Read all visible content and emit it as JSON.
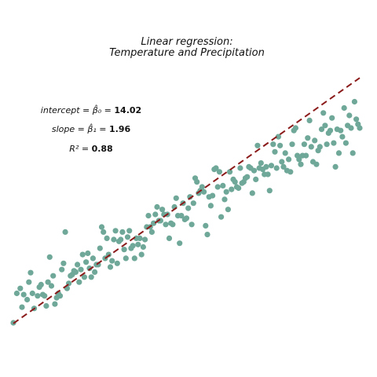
{
  "chart_data": {
    "type": "scatter",
    "title_lines": [
      "Linear regression:",
      "Temperature and Precipitation"
    ],
    "xlabel": "",
    "ylabel": "",
    "xlim": [
      0,
      200
    ],
    "ylim": [
      0,
      420
    ],
    "grid": false,
    "axes_visible": false,
    "colors": {
      "points": "#6fa898",
      "fit_line": "#8b1a1a",
      "text": "#111111"
    },
    "fit_line": {
      "intercept": 14.02,
      "slope": 1.96,
      "style": "dashed"
    },
    "annotations": {
      "intercept": {
        "label": "intercept = β̂₀ = ",
        "value": "14.02"
      },
      "slope": {
        "label": "slope = β̂₁ = ",
        "value": "1.96"
      },
      "r2": {
        "label": "R² = ",
        "value": "0.88"
      }
    },
    "points": [
      [
        0,
        15
      ],
      [
        2,
        62
      ],
      [
        4,
        70
      ],
      [
        5,
        40
      ],
      [
        6,
        60
      ],
      [
        8,
        52
      ],
      [
        9,
        80
      ],
      [
        10,
        95
      ],
      [
        11,
        62
      ],
      [
        12,
        38
      ],
      [
        14,
        58
      ],
      [
        15,
        72
      ],
      [
        16,
        76
      ],
      [
        17,
        60
      ],
      [
        18,
        58
      ],
      [
        19,
        42
      ],
      [
        20,
        80
      ],
      [
        21,
        120
      ],
      [
        22,
        74
      ],
      [
        23,
        90
      ],
      [
        24,
        45
      ],
      [
        25,
        55
      ],
      [
        26,
        62
      ],
      [
        27,
        58
      ],
      [
        28,
        100
      ],
      [
        29,
        110
      ],
      [
        30,
        160
      ],
      [
        31,
        70
      ],
      [
        32,
        78
      ],
      [
        33,
        90
      ],
      [
        34,
        92
      ],
      [
        35,
        98
      ],
      [
        36,
        96
      ],
      [
        37,
        108
      ],
      [
        38,
        80
      ],
      [
        39,
        100
      ],
      [
        40,
        124
      ],
      [
        41,
        88
      ],
      [
        42,
        112
      ],
      [
        43,
        126
      ],
      [
        44,
        102
      ],
      [
        45,
        88
      ],
      [
        46,
        118
      ],
      [
        47,
        96
      ],
      [
        48,
        108
      ],
      [
        49,
        108
      ],
      [
        50,
        134
      ],
      [
        51,
        168
      ],
      [
        52,
        160
      ],
      [
        53,
        118
      ],
      [
        54,
        150
      ],
      [
        55,
        124
      ],
      [
        56,
        104
      ],
      [
        57,
        114
      ],
      [
        58,
        148
      ],
      [
        59,
        162
      ],
      [
        60,
        110
      ],
      [
        61,
        145
      ],
      [
        62,
        148
      ],
      [
        63,
        160
      ],
      [
        64,
        132
      ],
      [
        65,
        118
      ],
      [
        66,
        152
      ],
      [
        67,
        162
      ],
      [
        68,
        134
      ],
      [
        69,
        138
      ],
      [
        70,
        118
      ],
      [
        71,
        150
      ],
      [
        72,
        140
      ],
      [
        73,
        150
      ],
      [
        74,
        124
      ],
      [
        75,
        136
      ],
      [
        76,
        148
      ],
      [
        77,
        168
      ],
      [
        78,
        186
      ],
      [
        79,
        168
      ],
      [
        80,
        160
      ],
      [
        81,
        174
      ],
      [
        82,
        188
      ],
      [
        83,
        200
      ],
      [
        84,
        178
      ],
      [
        85,
        178
      ],
      [
        86,
        196
      ],
      [
        87,
        188
      ],
      [
        88,
        172
      ],
      [
        89,
        188
      ],
      [
        90,
        150
      ],
      [
        91,
        174
      ],
      [
        92,
        172
      ],
      [
        93,
        200
      ],
      [
        94,
        214
      ],
      [
        95,
        186
      ],
      [
        96,
        142
      ],
      [
        97,
        186
      ],
      [
        98,
        206
      ],
      [
        99,
        180
      ],
      [
        100,
        182
      ],
      [
        101,
        198
      ],
      [
        102,
        216
      ],
      [
        103,
        172
      ],
      [
        104,
        206
      ],
      [
        105,
        246
      ],
      [
        106,
        240
      ],
      [
        107,
        222
      ],
      [
        108,
        226
      ],
      [
        109,
        232
      ],
      [
        110,
        224
      ],
      [
        111,
        170
      ],
      [
        112,
        156
      ],
      [
        113,
        216
      ],
      [
        114,
        202
      ],
      [
        115,
        218
      ],
      [
        116,
        260
      ],
      [
        117,
        262
      ],
      [
        118,
        232
      ],
      [
        119,
        256
      ],
      [
        120,
        184
      ],
      [
        121,
        234
      ],
      [
        122,
        212
      ],
      [
        123,
        224
      ],
      [
        124,
        196
      ],
      [
        125,
        256
      ],
      [
        126,
        228
      ],
      [
        127,
        244
      ],
      [
        128,
        240
      ],
      [
        129,
        232
      ],
      [
        130,
        230
      ],
      [
        131,
        262
      ],
      [
        132,
        238
      ],
      [
        133,
        240
      ],
      [
        134,
        246
      ],
      [
        135,
        248
      ],
      [
        136,
        264
      ],
      [
        137,
        262
      ],
      [
        138,
        222
      ],
      [
        139,
        258
      ],
      [
        140,
        244
      ],
      [
        141,
        298
      ],
      [
        142,
        262
      ],
      [
        143,
        270
      ],
      [
        144,
        260
      ],
      [
        145,
        252
      ],
      [
        146,
        264
      ],
      [
        147,
        252
      ],
      [
        148,
        226
      ],
      [
        149,
        266
      ],
      [
        150,
        300
      ],
      [
        151,
        288
      ],
      [
        152,
        262
      ],
      [
        153,
        312
      ],
      [
        154,
        298
      ],
      [
        155,
        272
      ],
      [
        156,
        264
      ],
      [
        157,
        286
      ],
      [
        158,
        258
      ],
      [
        159,
        276
      ],
      [
        160,
        256
      ],
      [
        161,
        300
      ],
      [
        162,
        322
      ],
      [
        163,
        326
      ],
      [
        164,
        282
      ],
      [
        165,
        276
      ],
      [
        166,
        268
      ],
      [
        167,
        282
      ],
      [
        168,
        300
      ],
      [
        169,
        282
      ],
      [
        170,
        310
      ],
      [
        171,
        338
      ],
      [
        172,
        296
      ],
      [
        173,
        272
      ],
      [
        174,
        306
      ],
      [
        175,
        268
      ],
      [
        176,
        290
      ],
      [
        177,
        296
      ],
      [
        178,
        324
      ],
      [
        179,
        350
      ],
      [
        180,
        330
      ],
      [
        181,
        300
      ],
      [
        182,
        318
      ],
      [
        183,
        322
      ],
      [
        184,
        342
      ],
      [
        185,
        302
      ],
      [
        186,
        264
      ],
      [
        187,
        324
      ],
      [
        188,
        286
      ],
      [
        189,
        322
      ],
      [
        190,
        312
      ],
      [
        191,
        358
      ],
      [
        192,
        302
      ],
      [
        193,
        330
      ],
      [
        194,
        346
      ],
      [
        195,
        326
      ],
      [
        196,
        286
      ],
      [
        197,
        368
      ],
      [
        198,
        340
      ],
      [
        199,
        332
      ],
      [
        200,
        326
      ]
    ]
  }
}
